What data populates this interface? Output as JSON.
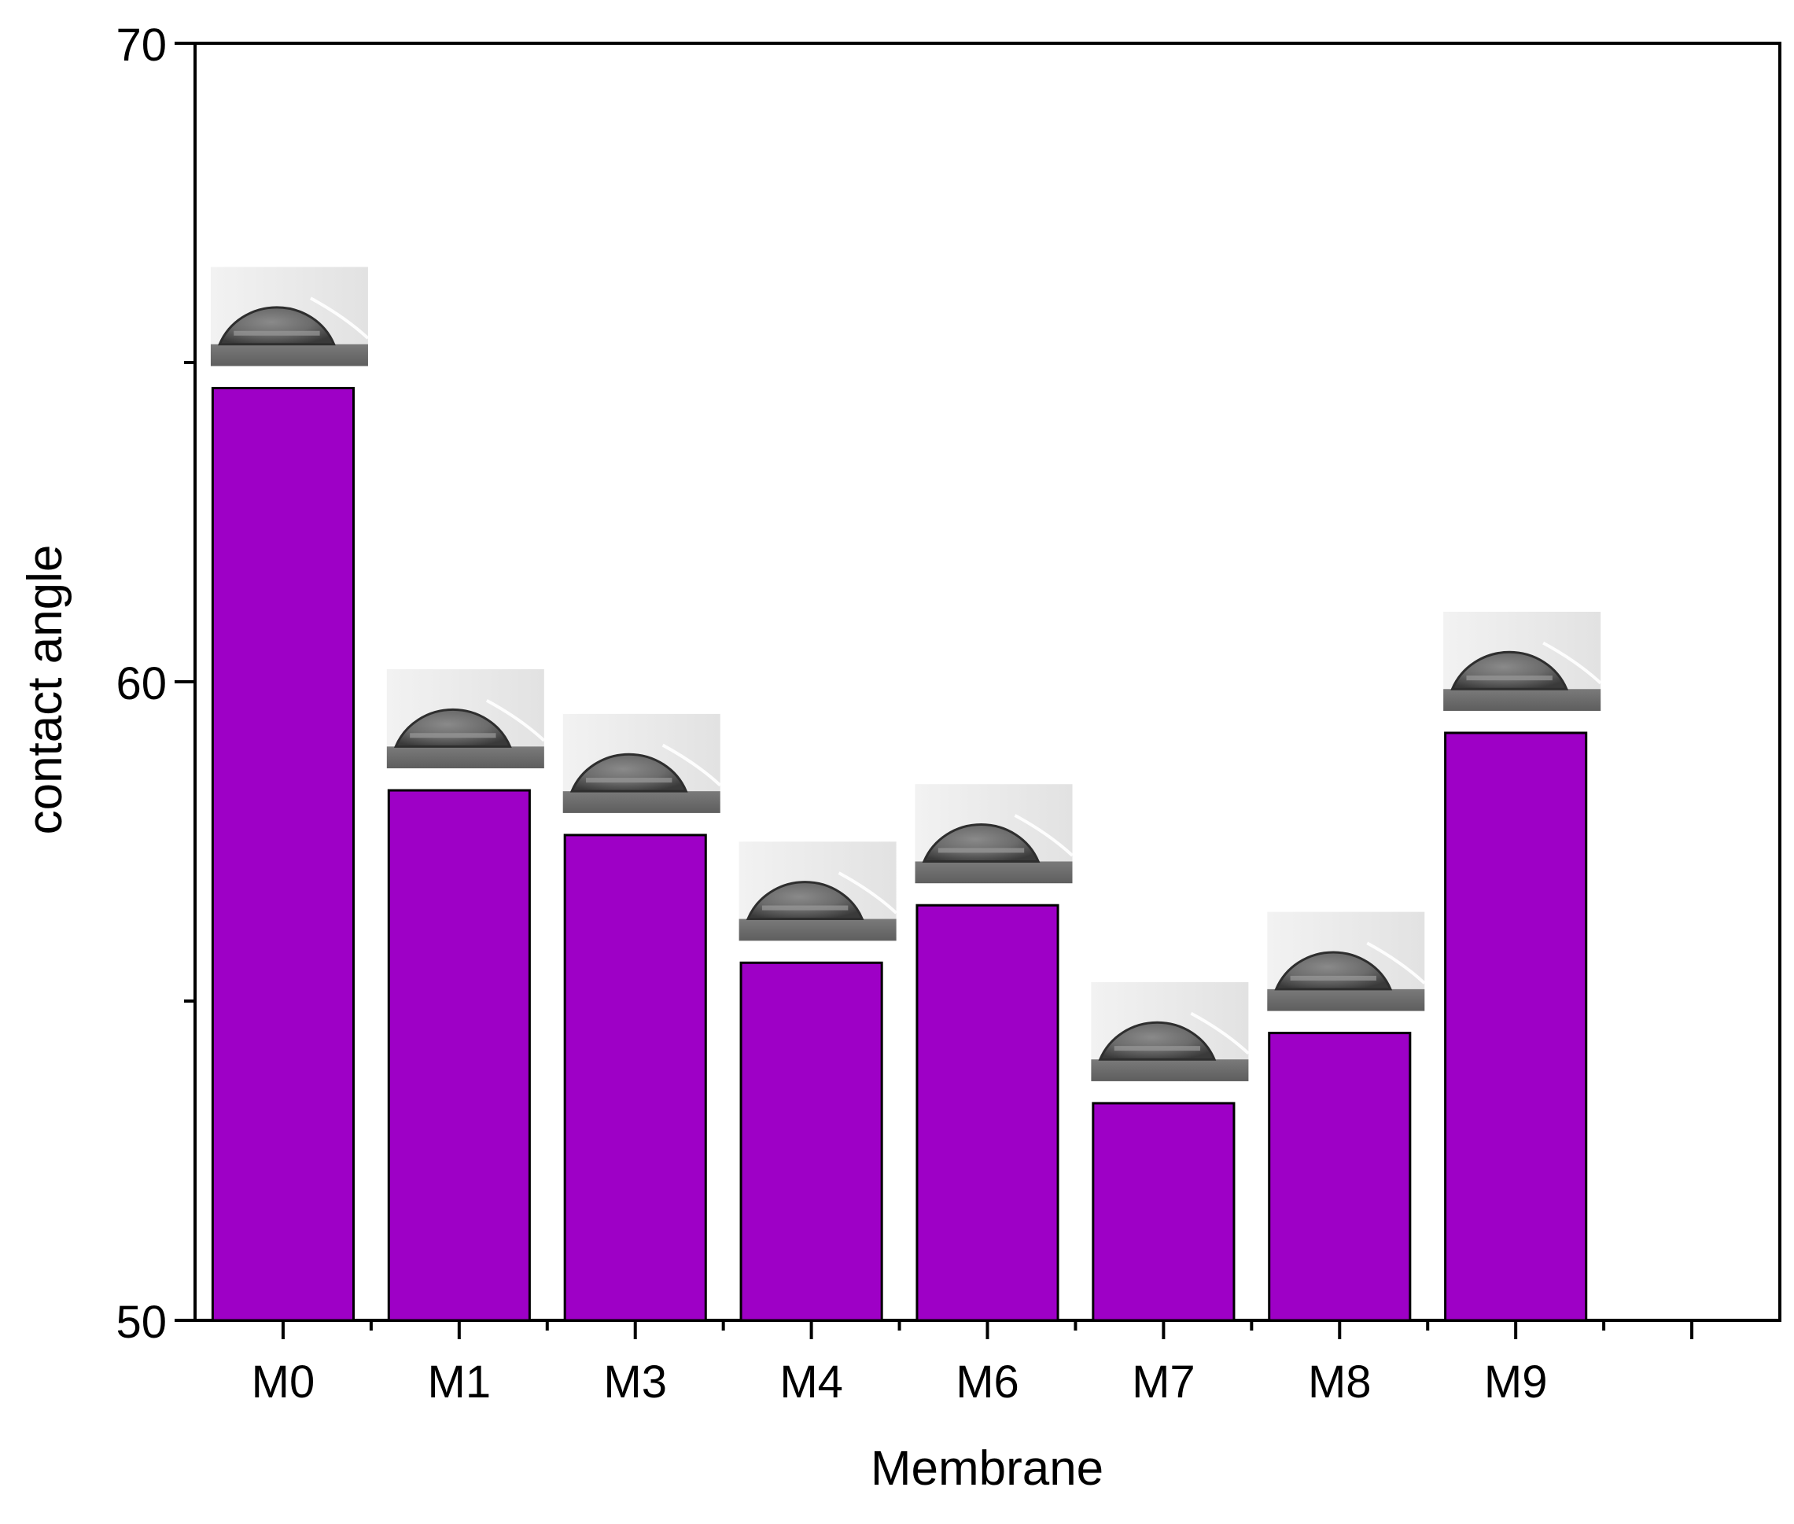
{
  "chart_data": {
    "type": "bar",
    "title": "",
    "xlabel": "Membrane",
    "ylabel": "contact angle",
    "categories": [
      "M0",
      "M1",
      "M3",
      "M4",
      "M6",
      "M7",
      "M8",
      "M9"
    ],
    "values": [
      64.6,
      58.3,
      57.6,
      55.6,
      56.5,
      53.4,
      54.5,
      59.2
    ],
    "ylim": [
      50,
      70
    ],
    "yticks": [
      50,
      60,
      70
    ],
    "x_slots": 9,
    "bar_color": "#9e00c6",
    "grid": false,
    "legend": "none",
    "annotations": "droplet photograph above each bar"
  }
}
